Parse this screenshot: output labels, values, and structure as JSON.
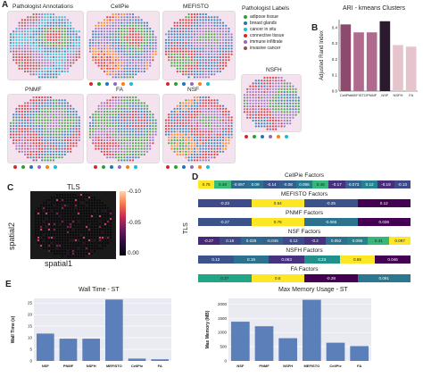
{
  "panel_a": {
    "letter": "A",
    "titles": {
      "pathologist": "Pathologist Annotations",
      "cellpie": "CellPie",
      "mefisto": "MEFISTO",
      "pnmf": "PNMF",
      "fa": "FA",
      "nsf": "NSF",
      "nsfh": "NSFH"
    },
    "legend_title": "Pathologist Labels",
    "legend": [
      {
        "label": "adipose tissue",
        "color": "#2ca02c"
      },
      {
        "label": "breast glands",
        "color": "#1f77b4"
      },
      {
        "label": "cancer in situ",
        "color": "#17becf"
      },
      {
        "label": "connective tissue",
        "color": "#d62728"
      },
      {
        "label": "immune infiltrate",
        "color": "#9467bd"
      },
      {
        "label": "invasive cancer",
        "color": "#8c564b"
      }
    ],
    "dot_colors": [
      "#d62728",
      "#2ca02c",
      "#1f77b4",
      "#9467bd",
      "#ff7f0e",
      "#17becf"
    ]
  },
  "panel_b": {
    "letter": "B",
    "chart_data": {
      "type": "bar",
      "title": "ARI - kmeans Clusters",
      "ylabel": "Adjusted Rand Index",
      "categories": [
        "CellPie",
        "MEFISTO",
        "PNMF",
        "NSF",
        "NSFH",
        "FA"
      ],
      "values": [
        0.42,
        0.37,
        0.37,
        0.44,
        0.29,
        0.28
      ],
      "colors": [
        "#8c4a6e",
        "#b06a8e",
        "#b06a8e",
        "#2b1a2e",
        "#e6c4cc",
        "#e6c4cc"
      ],
      "ylim": [
        0,
        0.45
      ],
      "yticks": [
        "0.0",
        "0.1",
        "0.2",
        "0.3",
        "0.4"
      ],
      "ytick_values": [
        0,
        0.1,
        0.2,
        0.3,
        0.4
      ]
    }
  },
  "panel_c": {
    "letter": "C",
    "title": "TLS",
    "xlabel": "spatial1",
    "ylabel": "spatial2",
    "colorbar_ticks": [
      "-0.10",
      "-0.05",
      "0.00"
    ]
  },
  "panel_d": {
    "letter": "D",
    "side_label": "TLS",
    "groups": [
      {
        "title": "CellPie Factors",
        "cells": [
          {
            "v": "0.75",
            "c": "#fde725"
          },
          {
            "v": "0.48",
            "c": "#3bbb75"
          },
          {
            "v": "-0.097",
            "c": "#31688e"
          },
          {
            "v": "0.09",
            "c": "#2c728e"
          },
          {
            "v": "-0.14",
            "c": "#3b528b"
          },
          {
            "v": "-0.08",
            "c": "#355f8d"
          },
          {
            "v": "0.096",
            "c": "#2a788e"
          },
          {
            "v": "0.46",
            "c": "#35b779"
          },
          {
            "v": "-0.17",
            "c": "#46327e"
          },
          {
            "v": "-0.073",
            "c": "#33638d"
          },
          {
            "v": "0.12",
            "c": "#26828e"
          },
          {
            "v": "-0.19",
            "c": "#472d7b"
          },
          {
            "v": "-0.13",
            "c": "#3e4989"
          }
        ]
      },
      {
        "title": "MEFISTO Factors",
        "cells": [
          {
            "v": "-0.23",
            "c": "#3e4a89"
          },
          {
            "v": "0.54",
            "c": "#fde725"
          },
          {
            "v": "-0.25",
            "c": "#3b528b"
          },
          {
            "v": "0.12",
            "c": "#440154"
          }
        ]
      },
      {
        "title": "PNMF Factors",
        "cells": [
          {
            "v": "-0.27",
            "c": "#3b528b"
          },
          {
            "v": "0.76",
            "c": "#fde725"
          },
          {
            "v": "-0.065",
            "c": "#2c728e"
          },
          {
            "v": "0.036",
            "c": "#440154"
          }
        ]
      },
      {
        "title": "NSF Factors",
        "cells": [
          {
            "v": "-0.27",
            "c": "#482878"
          },
          {
            "v": "0.16",
            "c": "#3e4989"
          },
          {
            "v": "0.028",
            "c": "#31688e"
          },
          {
            "v": "-0.045",
            "c": "#33638d"
          },
          {
            "v": "0.12",
            "c": "#3e4a89"
          },
          {
            "v": "-0.2",
            "c": "#46337f"
          },
          {
            "v": "0.052",
            "c": "#2c728e"
          },
          {
            "v": "0.095",
            "c": "#26828e"
          },
          {
            "v": "0.41",
            "c": "#35b779"
          },
          {
            "v": "0.097",
            "c": "#fde725"
          }
        ]
      },
      {
        "title": "NSFH Factors",
        "cells": [
          {
            "v": "0.12",
            "c": "#3b528b"
          },
          {
            "v": "0.19",
            "c": "#2c728e"
          },
          {
            "v": "0.063",
            "c": "#46327e"
          },
          {
            "v": "0.23",
            "c": "#21918c"
          },
          {
            "v": "0.65",
            "c": "#fde725"
          },
          {
            "v": "0.046",
            "c": "#440154"
          }
        ]
      },
      {
        "title": "FA Factors",
        "cells": [
          {
            "v": "0.27",
            "c": "#21a685"
          },
          {
            "v": "0.6",
            "c": "#fde725"
          },
          {
            "v": "-0.28",
            "c": "#440154"
          },
          {
            "v": "0.091",
            "c": "#2a788e"
          }
        ]
      }
    ]
  },
  "panel_e": {
    "letter": "E",
    "charts": [
      {
        "type": "bar",
        "title": "Wall Time - ST",
        "ylabel": "Wall Time (s)",
        "categories": [
          "NSF",
          "PNMF",
          "NSFH",
          "MEFISTO",
          "CellPie",
          "FA"
        ],
        "values": [
          11.8,
          9.6,
          9.6,
          26.5,
          1.0,
          0.7
        ],
        "ylim": [
          0,
          27
        ],
        "yticks": [
          "0",
          "5",
          "10",
          "15",
          "20",
          "25"
        ],
        "ytick_values": [
          0,
          5,
          10,
          15,
          20,
          25
        ],
        "color": "#5b7fb8"
      },
      {
        "type": "bar",
        "title": "Max Memory Usage - ST",
        "ylabel": "Max Memory (MB)",
        "categories": [
          "NSF",
          "PNMF",
          "NSFH",
          "MEFISTO",
          "CellPie",
          "FA"
        ],
        "values": [
          1380,
          1220,
          800,
          2150,
          640,
          520
        ],
        "ylim": [
          0,
          2200
        ],
        "yticks": [
          "0",
          "500",
          "1000",
          "1500",
          "2000"
        ],
        "ytick_values": [
          0,
          500,
          1000,
          1500,
          2000
        ],
        "color": "#5b7fb8"
      }
    ]
  }
}
